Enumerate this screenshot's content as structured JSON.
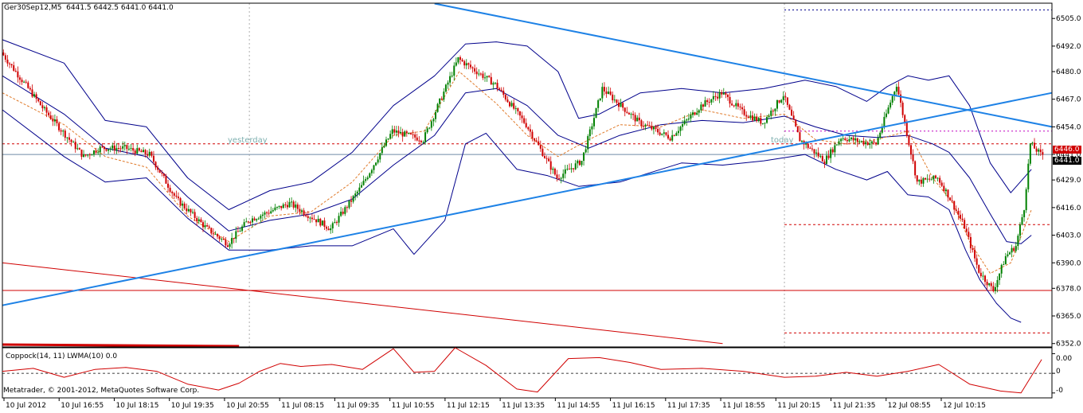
{
  "header": {
    "symbol": "Ger30Sep12,M5",
    "ohlc": "6441.5 6442.5 6441.0 6441.0"
  },
  "indicator": {
    "label": "Coppock(14, 11) LWMA(10) 0.0",
    "axis_ticks": [
      1,
      0,
      -1
    ],
    "axis_labels": [
      "0",
      "0.00",
      "-0"
    ]
  },
  "copyright": "Metatrader, © 2001-2012, MetaQuotes Software Corp.",
  "markers": {
    "yesterday": "yesterday",
    "today": "today"
  },
  "price_tags": {
    "level_red": "6446.0",
    "current": "6441.0"
  },
  "chart_data": {
    "type": "candlestick",
    "y_ticks": [
      6505.0,
      6492.0,
      6480.0,
      6467.0,
      6454.0,
      6441.0,
      6429.0,
      6416.0,
      6403.0,
      6390.0,
      6378.0,
      6365.0,
      6352.0
    ],
    "ylim": [
      6350.4,
      6512.2
    ],
    "x_labels": [
      "10 Jul 2012",
      "10 Jul 16:55",
      "10 Jul 18:15",
      "10 Jul 19:35",
      "10 Jul 20:55",
      "11 Jul 08:15",
      "11 Jul 09:35",
      "11 Jul 10:55",
      "11 Jul 12:15",
      "11 Jul 13:35",
      "11 Jul 14:55",
      "11 Jul 16:15",
      "11 Jul 17:35",
      "11 Jul 18:55",
      "11 Jul 20:15",
      "11 Jul 21:35",
      "12 Jul 08:55",
      "12 Jul 10:15"
    ],
    "guide_points": [
      [
        0,
        6489
      ],
      [
        20,
        6463
      ],
      [
        40,
        6440
      ],
      [
        48,
        6444
      ],
      [
        60,
        6444
      ],
      [
        72,
        6441
      ],
      [
        85,
        6420
      ],
      [
        100,
        6406
      ],
      [
        110,
        6399
      ],
      [
        120,
        6410
      ],
      [
        140,
        6418
      ],
      [
        160,
        6406
      ],
      [
        175,
        6426
      ],
      [
        190,
        6452
      ],
      [
        205,
        6448
      ],
      [
        222,
        6486
      ],
      [
        240,
        6474
      ],
      [
        255,
        6455
      ],
      [
        270,
        6430
      ],
      [
        282,
        6438
      ],
      [
        292,
        6472
      ],
      [
        310,
        6456
      ],
      [
        325,
        6449
      ],
      [
        340,
        6464
      ],
      [
        350,
        6470
      ],
      [
        360,
        6461
      ],
      [
        370,
        6456
      ],
      [
        380,
        6469
      ],
      [
        388,
        6448
      ],
      [
        400,
        6438
      ],
      [
        408,
        6449
      ],
      [
        418,
        6447
      ],
      [
        425,
        6446
      ],
      [
        435,
        6474
      ],
      [
        445,
        6428
      ],
      [
        455,
        6430
      ],
      [
        460,
        6422
      ],
      [
        468,
        6407
      ],
      [
        475,
        6386
      ],
      [
        482,
        6377
      ],
      [
        488,
        6393
      ],
      [
        493,
        6398
      ],
      [
        497,
        6416
      ],
      [
        500,
        6446
      ],
      [
        505,
        6441
      ]
    ],
    "upper_band": [
      [
        0,
        6495
      ],
      [
        30,
        6484
      ],
      [
        50,
        6457
      ],
      [
        70,
        6454
      ],
      [
        90,
        6430
      ],
      [
        110,
        6415
      ],
      [
        130,
        6424
      ],
      [
        150,
        6428
      ],
      [
        170,
        6442
      ],
      [
        190,
        6464
      ],
      [
        210,
        6478
      ],
      [
        225,
        6493
      ],
      [
        240,
        6494
      ],
      [
        255,
        6492
      ],
      [
        270,
        6480
      ],
      [
        280,
        6458
      ],
      [
        290,
        6460
      ],
      [
        310,
        6470
      ],
      [
        330,
        6472
      ],
      [
        350,
        6470
      ],
      [
        370,
        6472
      ],
      [
        390,
        6476
      ],
      [
        405,
        6473
      ],
      [
        420,
        6466
      ],
      [
        430,
        6473
      ],
      [
        440,
        6478
      ],
      [
        450,
        6476
      ],
      [
        460,
        6478
      ],
      [
        470,
        6464
      ],
      [
        480,
        6437
      ],
      [
        490,
        6423
      ],
      [
        500,
        6434
      ]
    ],
    "lower_band": [
      [
        0,
        6462
      ],
      [
        30,
        6440
      ],
      [
        50,
        6428
      ],
      [
        70,
        6430
      ],
      [
        90,
        6411
      ],
      [
        110,
        6396
      ],
      [
        130,
        6396
      ],
      [
        150,
        6398
      ],
      [
        170,
        6398
      ],
      [
        190,
        6406
      ],
      [
        200,
        6394
      ],
      [
        215,
        6410
      ],
      [
        225,
        6446
      ],
      [
        235,
        6451
      ],
      [
        250,
        6434
      ],
      [
        265,
        6431
      ],
      [
        280,
        6426
      ],
      [
        300,
        6428
      ],
      [
        330,
        6437
      ],
      [
        350,
        6436
      ],
      [
        370,
        6438
      ],
      [
        390,
        6441
      ],
      [
        405,
        6434
      ],
      [
        420,
        6429
      ],
      [
        430,
        6433
      ],
      [
        440,
        6422
      ],
      [
        450,
        6421
      ],
      [
        460,
        6415
      ],
      [
        468,
        6396
      ],
      [
        475,
        6382
      ],
      [
        483,
        6371
      ],
      [
        490,
        6364
      ],
      [
        495,
        6362
      ]
    ],
    "middle_band": [
      [
        0,
        6478
      ],
      [
        30,
        6460
      ],
      [
        50,
        6444
      ],
      [
        70,
        6440
      ],
      [
        90,
        6421
      ],
      [
        110,
        6405
      ],
      [
        130,
        6410
      ],
      [
        150,
        6413
      ],
      [
        170,
        6420
      ],
      [
        190,
        6436
      ],
      [
        210,
        6450
      ],
      [
        225,
        6470
      ],
      [
        240,
        6472
      ],
      [
        255,
        6464
      ],
      [
        270,
        6450
      ],
      [
        285,
        6444
      ],
      [
        300,
        6450
      ],
      [
        320,
        6455
      ],
      [
        340,
        6457
      ],
      [
        360,
        6456
      ],
      [
        380,
        6459
      ],
      [
        395,
        6454
      ],
      [
        410,
        6450
      ],
      [
        425,
        6449
      ],
      [
        440,
        6450
      ],
      [
        452,
        6446
      ],
      [
        460,
        6442
      ],
      [
        470,
        6430
      ],
      [
        480,
        6413
      ],
      [
        488,
        6400
      ],
      [
        495,
        6399
      ],
      [
        500,
        6403
      ]
    ],
    "ma_dashed": [
      [
        0,
        6470
      ],
      [
        30,
        6455
      ],
      [
        50,
        6440
      ],
      [
        70,
        6435
      ],
      [
        90,
        6412
      ],
      [
        110,
        6400
      ],
      [
        130,
        6412
      ],
      [
        150,
        6414
      ],
      [
        170,
        6428
      ],
      [
        190,
        6450
      ],
      [
        205,
        6452
      ],
      [
        222,
        6480
      ],
      [
        240,
        6465
      ],
      [
        255,
        6450
      ],
      [
        270,
        6440
      ],
      [
        285,
        6448
      ],
      [
        300,
        6455
      ],
      [
        320,
        6454
      ],
      [
        340,
        6462
      ],
      [
        360,
        6458
      ],
      [
        380,
        6460
      ],
      [
        395,
        6448
      ],
      [
        410,
        6446
      ],
      [
        425,
        6448
      ],
      [
        440,
        6452
      ],
      [
        452,
        6430
      ],
      [
        462,
        6418
      ],
      [
        470,
        6400
      ],
      [
        480,
        6385
      ],
      [
        490,
        6390
      ],
      [
        500,
        6415
      ]
    ],
    "trendline_down": [
      [
        210,
        6512
      ],
      [
        510,
        6454
      ]
    ],
    "trendline_up": [
      [
        0,
        6370
      ],
      [
        510,
        6470
      ]
    ],
    "red_diagonal": [
      [
        0,
        6390
      ],
      [
        350,
        6352
      ]
    ],
    "horizontal_levels": [
      {
        "value": 6377,
        "x_from": 0,
        "x_to": 510,
        "style": "solid",
        "color": "#d00000"
      },
      {
        "value": 6446,
        "x_from": 0,
        "x_to": 510,
        "style": "dashed",
        "color": "#d00000"
      },
      {
        "value": 6441,
        "x_from": 0,
        "x_to": 510,
        "style": "solid",
        "color": "#6f8aa6"
      },
      {
        "value": 6509,
        "x_from": 380,
        "x_to": 510,
        "style": "dotted",
        "color": "#00008b"
      },
      {
        "value": 6452,
        "x_from": 380,
        "x_to": 510,
        "style": "dotted",
        "color": "#c000c0"
      },
      {
        "value": 6408,
        "x_from": 380,
        "x_to": 510,
        "style": "dashed",
        "color": "#d00000"
      },
      {
        "value": 6357,
        "x_from": 380,
        "x_to": 510,
        "style": "dashed",
        "color": "#d00000"
      }
    ],
    "period_separators_x": [
      120,
      380
    ],
    "coppock_points": [
      [
        0,
        0.1
      ],
      [
        15,
        0.25
      ],
      [
        30,
        -0.2
      ],
      [
        45,
        0.2
      ],
      [
        60,
        0.3
      ],
      [
        75,
        0.1
      ],
      [
        90,
        -0.55
      ],
      [
        105,
        -0.85
      ],
      [
        115,
        -0.5
      ],
      [
        125,
        0.1
      ],
      [
        135,
        0.5
      ],
      [
        145,
        0.35
      ],
      [
        160,
        0.45
      ],
      [
        175,
        0.2
      ],
      [
        190,
        1.25
      ],
      [
        200,
        0.05
      ],
      [
        210,
        0.1
      ],
      [
        220,
        1.3
      ],
      [
        235,
        0.4
      ],
      [
        250,
        -0.8
      ],
      [
        260,
        -0.95
      ],
      [
        275,
        0.75
      ],
      [
        290,
        0.8
      ],
      [
        305,
        0.55
      ],
      [
        320,
        0.2
      ],
      [
        340,
        0.25
      ],
      [
        360,
        0.1
      ],
      [
        380,
        -0.2
      ],
      [
        395,
        -0.15
      ],
      [
        410,
        0.05
      ],
      [
        425,
        -0.15
      ],
      [
        440,
        0.1
      ],
      [
        455,
        0.45
      ],
      [
        470,
        -0.55
      ],
      [
        485,
        -0.9
      ],
      [
        495,
        -1.0
      ],
      [
        505,
        0.7
      ]
    ],
    "coppock_ylim": [
      -1.25,
      1.3
    ],
    "x_range": [
      0,
      510
    ]
  }
}
